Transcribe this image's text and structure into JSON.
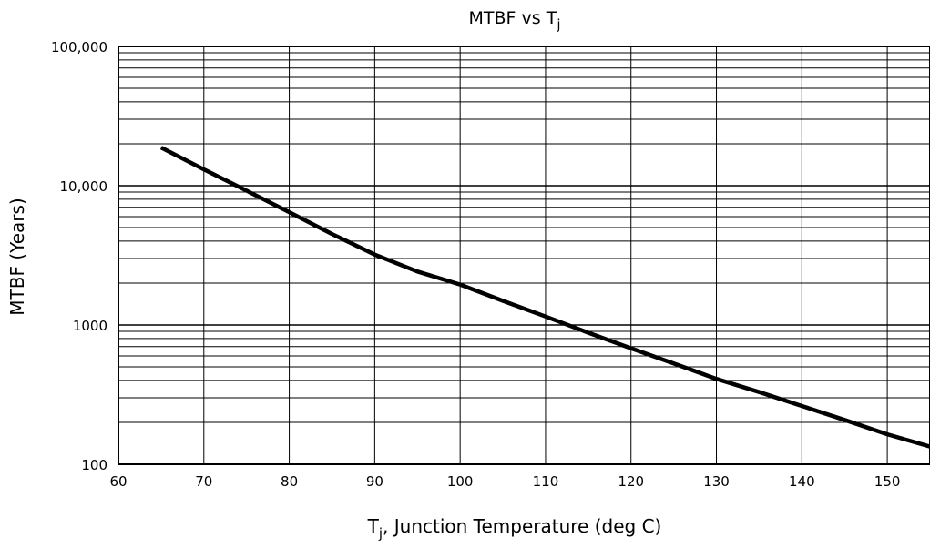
{
  "chart_data": {
    "type": "line",
    "title": "MTBF vs Tj",
    "title_parts": {
      "main": "MTBF vs T",
      "sub": "j"
    },
    "xlabel": "Tj, Junction Temperature (deg C)",
    "xlabel_parts": {
      "pre": "T",
      "sub": "j",
      "post": ", Junction Temperature (deg C)"
    },
    "ylabel": "MTBF (Years)",
    "x_scale": "linear",
    "y_scale": "log",
    "xlim": [
      60,
      155
    ],
    "ylim": [
      100,
      100000
    ],
    "x_ticks": [
      60,
      70,
      80,
      90,
      100,
      110,
      120,
      130,
      140,
      150
    ],
    "x_tick_labels": [
      "60",
      "70",
      "80",
      "90",
      "100",
      "110",
      "120",
      "130",
      "140",
      "150"
    ],
    "y_ticks": [
      100,
      1000,
      10000,
      100000
    ],
    "y_tick_labels": [
      "100",
      "1000",
      "10,000",
      "100,000"
    ],
    "grid": true,
    "line_color": "#000000",
    "series": [
      {
        "x": [
          65,
          70,
          75,
          80,
          85,
          90,
          95,
          100,
          105,
          110,
          115,
          120,
          125,
          130,
          135,
          140,
          145,
          150,
          155
        ],
        "y": [
          18800,
          13100,
          9200,
          6450,
          4500,
          3200,
          2420,
          1950,
          1490,
          1150,
          880,
          680,
          530,
          410,
          330,
          262,
          208,
          164,
          134
        ]
      }
    ]
  }
}
